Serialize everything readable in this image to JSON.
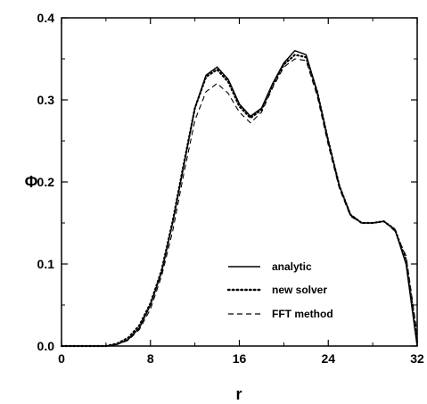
{
  "chart_data": {
    "type": "line",
    "xlabel": "r",
    "ylabel": "Φ",
    "xlim": [
      0,
      32
    ],
    "ylim": [
      0,
      0.4
    ],
    "xticks": [
      "0",
      "8",
      "16",
      "24",
      "32"
    ],
    "yticks": [
      "0.0",
      "0.1",
      "0.2",
      "0.3",
      "0.4"
    ],
    "grid": false,
    "legend_position": "bottom-right",
    "series": [
      {
        "name": "analytic",
        "style": "solid",
        "x": [
          0,
          4,
          5,
          6,
          7,
          8,
          9,
          10,
          11,
          12,
          13,
          14,
          15,
          16,
          17,
          18,
          19,
          20,
          21,
          22,
          23,
          24,
          25,
          26,
          27,
          28,
          29,
          30,
          31,
          32
        ],
        "y": [
          0.0,
          0.0,
          0.002,
          0.008,
          0.022,
          0.05,
          0.09,
          0.15,
          0.22,
          0.29,
          0.33,
          0.34,
          0.325,
          0.295,
          0.28,
          0.29,
          0.32,
          0.345,
          0.36,
          0.355,
          0.31,
          0.25,
          0.195,
          0.16,
          0.15,
          0.15,
          0.152,
          0.142,
          0.1,
          0.0
        ]
      },
      {
        "name": "new solver",
        "style": "dotted",
        "x": [
          0,
          4,
          5,
          6,
          7,
          8,
          9,
          10,
          11,
          12,
          13,
          14,
          15,
          16,
          17,
          18,
          19,
          20,
          21,
          22,
          23,
          24,
          25,
          26,
          27,
          28,
          29,
          30,
          31,
          32
        ],
        "y": [
          0.0,
          0.0,
          0.003,
          0.01,
          0.025,
          0.052,
          0.092,
          0.152,
          0.222,
          0.29,
          0.328,
          0.337,
          0.322,
          0.292,
          0.278,
          0.288,
          0.318,
          0.343,
          0.355,
          0.352,
          0.31,
          0.25,
          0.195,
          0.16,
          0.15,
          0.15,
          0.152,
          0.142,
          0.105,
          0.005
        ]
      },
      {
        "name": "FFT method",
        "style": "dashed",
        "x": [
          0,
          4,
          5,
          6,
          7,
          8,
          9,
          10,
          11,
          12,
          13,
          14,
          15,
          16,
          17,
          18,
          19,
          20,
          21,
          22,
          23,
          24,
          25,
          26,
          27,
          28,
          29,
          30,
          31,
          32
        ],
        "y": [
          0.0,
          0.0,
          0.002,
          0.007,
          0.02,
          0.045,
          0.085,
          0.14,
          0.21,
          0.275,
          0.31,
          0.32,
          0.308,
          0.285,
          0.272,
          0.285,
          0.315,
          0.34,
          0.35,
          0.348,
          0.305,
          0.245,
          0.192,
          0.158,
          0.15,
          0.15,
          0.152,
          0.14,
          0.11,
          0.015
        ]
      }
    ]
  }
}
